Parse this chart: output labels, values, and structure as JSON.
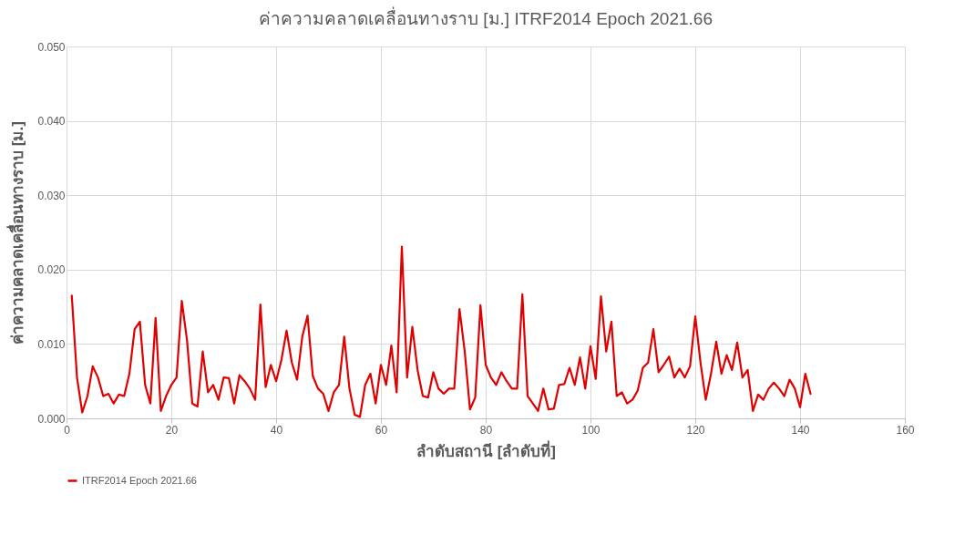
{
  "chart_data": {
    "type": "line",
    "title": "ค่าความคลาดเคลื่อนทางราบ [ม.] ITRF2014 Epoch 2021.66",
    "xlabel": "ลำดับสถานี [ลำดับที่]",
    "ylabel": "ค่าความคลาดเคลื่อนทางราบ [ม.]",
    "x": [
      1,
      2,
      3,
      4,
      5,
      6,
      7,
      8,
      9,
      10,
      11,
      12,
      13,
      14,
      15,
      16,
      17,
      18,
      19,
      20,
      21,
      22,
      23,
      24,
      25,
      26,
      27,
      28,
      29,
      30,
      31,
      32,
      33,
      34,
      35,
      36,
      37,
      38,
      39,
      40,
      41,
      42,
      43,
      44,
      45,
      46,
      47,
      48,
      49,
      50,
      51,
      52,
      53,
      54,
      55,
      56,
      57,
      58,
      59,
      60,
      61,
      62,
      63,
      64,
      65,
      66,
      67,
      68,
      69,
      70,
      71,
      72,
      73,
      74,
      75,
      76,
      77,
      78,
      79,
      80,
      81,
      82,
      83,
      84,
      85,
      86,
      87,
      88,
      89,
      90,
      91,
      92,
      93,
      94,
      95,
      96,
      97,
      98,
      99,
      100,
      101,
      102,
      103,
      104,
      105,
      106,
      107,
      108,
      109,
      110,
      111,
      112,
      113,
      114,
      115,
      116,
      117,
      118,
      119,
      120,
      121,
      122,
      123,
      124,
      125,
      126,
      127,
      128,
      129,
      130,
      131,
      132,
      133,
      134,
      135,
      136,
      137,
      138,
      139,
      140,
      141,
      142
    ],
    "series": [
      {
        "name": "ITRF2014 Epoch 2021.66",
        "color": "#e00000",
        "values": [
          0.0165,
          0.0055,
          0.0008,
          0.003,
          0.007,
          0.0055,
          0.003,
          0.0033,
          0.002,
          0.0032,
          0.003,
          0.006,
          0.012,
          0.013,
          0.0045,
          0.002,
          0.0135,
          0.001,
          0.003,
          0.0045,
          0.0055,
          0.0158,
          0.0105,
          0.002,
          0.0016,
          0.009,
          0.0035,
          0.0045,
          0.0025,
          0.0055,
          0.0054,
          0.002,
          0.0058,
          0.005,
          0.004,
          0.0025,
          0.0153,
          0.0042,
          0.0072,
          0.005,
          0.0078,
          0.0118,
          0.0075,
          0.0052,
          0.011,
          0.0138,
          0.0057,
          0.004,
          0.0033,
          0.001,
          0.0035,
          0.0045,
          0.011,
          0.004,
          0.0005,
          0.0002,
          0.0045,
          0.006,
          0.002,
          0.0072,
          0.0045,
          0.0098,
          0.0035,
          0.0231,
          0.0055,
          0.0123,
          0.0065,
          0.003,
          0.0028,
          0.0062,
          0.004,
          0.0033,
          0.004,
          0.004,
          0.0147,
          0.009,
          0.0012,
          0.0028,
          0.0152,
          0.0072,
          0.0055,
          0.0045,
          0.0062,
          0.005,
          0.004,
          0.004,
          0.0167,
          0.003,
          0.002,
          0.001,
          0.004,
          0.0012,
          0.0013,
          0.0045,
          0.0046,
          0.0068,
          0.0045,
          0.0082,
          0.004,
          0.0097,
          0.0053,
          0.0164,
          0.009,
          0.013,
          0.003,
          0.0035,
          0.002,
          0.0025,
          0.0037,
          0.0068,
          0.0075,
          0.012,
          0.0062,
          0.0072,
          0.0083,
          0.0055,
          0.0067,
          0.0055,
          0.007,
          0.0137,
          0.0075,
          0.0025,
          0.006,
          0.0103,
          0.006,
          0.0085,
          0.0065,
          0.0102,
          0.0055,
          0.0065,
          0.001,
          0.0032,
          0.0025,
          0.004,
          0.0048,
          0.004,
          0.003,
          0.0052,
          0.004,
          0.0015,
          0.006,
          0.0033
        ]
      }
    ],
    "xlim": [
      0,
      160
    ],
    "xticks": [
      0,
      20,
      40,
      60,
      80,
      100,
      120,
      140,
      160
    ],
    "ylim": [
      0,
      0.05
    ],
    "yticks": [
      {
        "value": 0,
        "label": "0.000"
      },
      {
        "value": 0.01,
        "label": "0.010"
      },
      {
        "value": 0.02,
        "label": "0.020"
      },
      {
        "value": 0.03,
        "label": "0.030"
      },
      {
        "value": 0.04,
        "label": "0.040"
      },
      {
        "value": 0.05,
        "label": "0.050"
      }
    ],
    "grid": true,
    "legend": "bottom",
    "marker": "none",
    "line_style": "solid"
  }
}
